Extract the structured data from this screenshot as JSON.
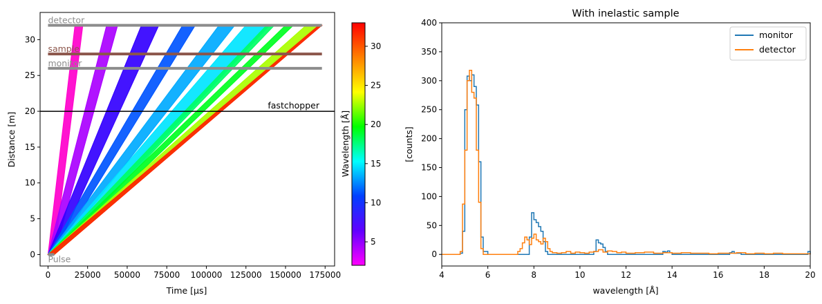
{
  "chart_data": [
    {
      "type": "line",
      "title": "",
      "xlabel": "Time [µs]",
      "ylabel": "Distance [m]",
      "xlim": [
        -5000,
        181000
      ],
      "ylim": [
        -1.6,
        33.8
      ],
      "xticks": [
        0,
        25000,
        50000,
        75000,
        100000,
        125000,
        150000,
        175000
      ],
      "xtick_labels": [
        "0",
        "25000",
        "50000",
        "75000",
        "100000",
        "125000",
        "150000",
        "175000"
      ],
      "yticks": [
        0,
        5,
        10,
        15,
        20,
        25,
        30
      ],
      "ytick_labels": [
        "0",
        "5",
        "10",
        "15",
        "20",
        "25",
        "30"
      ],
      "components": [
        {
          "label": "Pulse",
          "distance": 0,
          "color": "#8c8c8c"
        },
        {
          "label": "fastchopper",
          "distance": 20,
          "color": "#000000"
        },
        {
          "label": "monitor",
          "distance": 26,
          "color": "#8c8c8c"
        },
        {
          "label": "sample",
          "distance": 28,
          "color": "#8c564b"
        },
        {
          "label": "detector",
          "distance": 32,
          "color": "#8c8c8c"
        }
      ],
      "pulse_time_range": [
        0,
        4000
      ],
      "ray_bundles": [
        {
          "color": "#ff00cc",
          "t_end_detector": [
            17000,
            22000
          ]
        },
        {
          "color": "#aa00ff",
          "t_end_detector": [
            37000,
            44000
          ]
        },
        {
          "color": "#3300ff",
          "t_end_detector": [
            59000,
            70000
          ]
        },
        {
          "color": "#0055ff",
          "t_end_detector": [
            85000,
            93000
          ]
        },
        {
          "color": "#00aaff",
          "t_end_detector": [
            108000,
            118000
          ]
        },
        {
          "color": "#00e5ff",
          "t_end_detector": [
            125000,
            140000
          ]
        },
        {
          "color": "#00ff66",
          "t_end_detector": [
            138000,
            143000
          ]
        },
        {
          "color": "#00ff22",
          "t_end_detector": [
            150000,
            155000
          ]
        },
        {
          "color": "#aaff00",
          "t_end_detector": [
            163000,
            172000
          ]
        },
        {
          "color": "#ff2200",
          "t_end_detector": [
            171000,
            173000
          ]
        }
      ],
      "colorbar": {
        "label": "Wavelength [Å]",
        "range": [
          2,
          33
        ],
        "ticks": [
          5,
          10,
          15,
          20,
          25,
          30
        ],
        "tick_labels": [
          "5",
          "10",
          "15",
          "20",
          "25",
          "30"
        ],
        "colormap": [
          "#ff00ff",
          "#6000ff",
          "#0040ff",
          "#00ffff",
          "#00ff00",
          "#ffff00",
          "#ff8000",
          "#ff0000"
        ]
      }
    },
    {
      "type": "line",
      "title": "With inelastic sample",
      "xlabel": "wavelength [Å]",
      "ylabel": "[counts]",
      "xlim": [
        4,
        20
      ],
      "ylim": [
        -20,
        400
      ],
      "xticks": [
        4,
        6,
        8,
        10,
        12,
        14,
        16,
        18,
        20
      ],
      "xtick_labels": [
        "4",
        "6",
        "8",
        "10",
        "12",
        "14",
        "16",
        "18",
        "20"
      ],
      "yticks": [
        0,
        50,
        100,
        150,
        200,
        250,
        300,
        350,
        400
      ],
      "ytick_labels": [
        "0",
        "50",
        "100",
        "150",
        "200",
        "250",
        "300",
        "350",
        "400"
      ],
      "legend_position": "top-right",
      "series": [
        {
          "name": "monitor",
          "color": "#1f77b4",
          "x": [
            4.0,
            4.7,
            4.8,
            4.9,
            5.0,
            5.1,
            5.2,
            5.3,
            5.4,
            5.5,
            5.6,
            5.7,
            5.8,
            6.0,
            7.0,
            7.7,
            7.8,
            7.9,
            8.0,
            8.1,
            8.2,
            8.3,
            8.4,
            8.5,
            8.6,
            9.0,
            10.0,
            10.5,
            10.6,
            10.7,
            10.8,
            10.9,
            11.0,
            11.1,
            11.2,
            12.0,
            13.0,
            13.5,
            13.6,
            13.7,
            13.8,
            13.9,
            14.0,
            15.0,
            16.0,
            16.4,
            16.5,
            16.6,
            16.7,
            17.0,
            18.0,
            19.0,
            19.8,
            19.9,
            20.0
          ],
          "y": [
            0,
            0,
            2,
            40,
            250,
            308,
            300,
            310,
            290,
            258,
            160,
            30,
            5,
            0,
            0,
            0,
            30,
            72,
            60,
            55,
            48,
            40,
            22,
            5,
            0,
            0,
            0,
            0,
            5,
            25,
            20,
            18,
            12,
            5,
            0,
            0,
            0,
            0,
            5,
            4,
            6,
            3,
            0,
            0,
            0,
            0,
            3,
            5,
            2,
            0,
            0,
            0,
            0,
            5,
            0
          ]
        },
        {
          "name": "detector",
          "color": "#ff7f0e",
          "x": [
            4.0,
            4.7,
            4.8,
            4.9,
            5.0,
            5.1,
            5.2,
            5.3,
            5.4,
            5.5,
            5.6,
            5.7,
            5.8,
            6.0,
            7.0,
            7.3,
            7.4,
            7.5,
            7.6,
            7.7,
            7.8,
            7.9,
            8.0,
            8.1,
            8.2,
            8.3,
            8.4,
            8.5,
            8.6,
            8.7,
            8.8,
            9.0,
            9.2,
            9.4,
            9.6,
            9.8,
            10.0,
            10.2,
            10.4,
            10.6,
            10.8,
            11.0,
            11.2,
            11.4,
            11.6,
            11.8,
            12.0,
            12.4,
            12.8,
            13.2,
            13.6,
            14.0,
            14.4,
            14.8,
            15.2,
            15.6,
            16.0,
            16.4,
            16.8,
            17.2,
            17.6,
            18.0,
            18.4,
            18.8,
            19.2,
            19.6,
            20.0
          ],
          "y": [
            0,
            0,
            5,
            87,
            180,
            300,
            318,
            280,
            270,
            180,
            90,
            10,
            0,
            0,
            0,
            5,
            10,
            20,
            30,
            25,
            17,
            28,
            35,
            25,
            22,
            18,
            28,
            22,
            10,
            5,
            3,
            2,
            3,
            5,
            2,
            4,
            3,
            2,
            4,
            5,
            8,
            4,
            6,
            5,
            3,
            4,
            2,
            3,
            4,
            2,
            3,
            2,
            3,
            2,
            2,
            1,
            2,
            2,
            3,
            1,
            2,
            1,
            2,
            1,
            1,
            1,
            0
          ]
        }
      ]
    }
  ]
}
